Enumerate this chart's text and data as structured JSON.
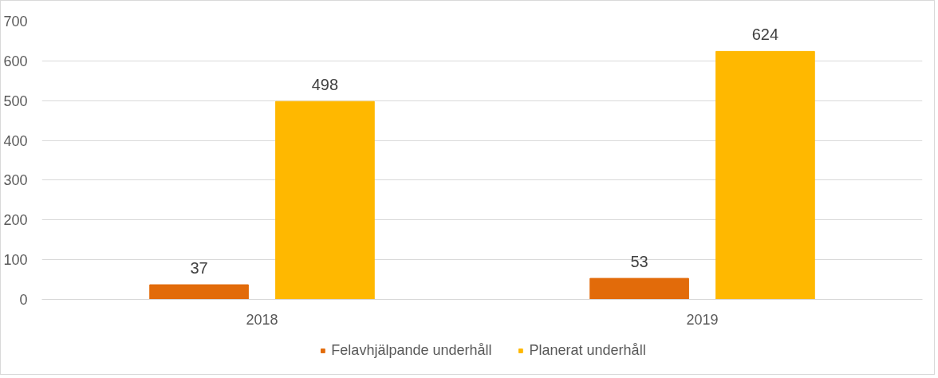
{
  "chart_data": {
    "type": "bar",
    "categories": [
      "2018",
      "2019"
    ],
    "series": [
      {
        "name": "Felavhjälpande underhåll",
        "color": "#e26b0a",
        "values": [
          37,
          53
        ]
      },
      {
        "name": "Planerat underhåll",
        "color": "#ffb800",
        "values": [
          498,
          624
        ]
      }
    ],
    "ylim": [
      0,
      700
    ],
    "yticks": [
      0,
      100,
      200,
      300,
      400,
      500,
      600,
      700
    ],
    "grid": "y",
    "legend": "bottom",
    "data_labels": true
  }
}
